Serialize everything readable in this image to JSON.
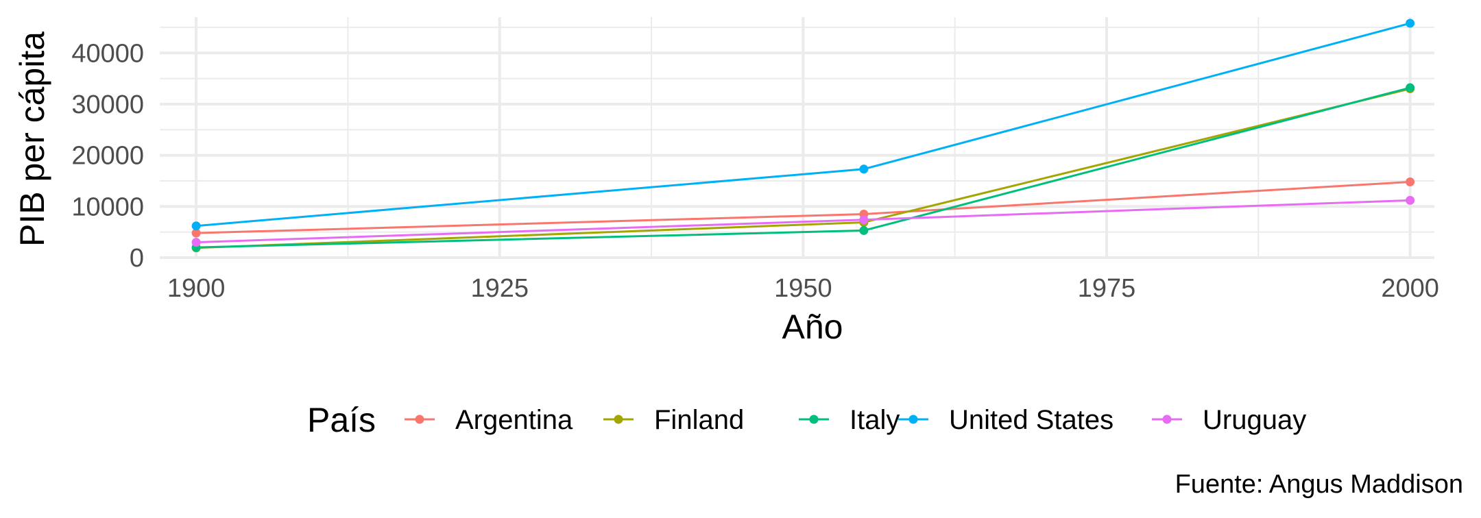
{
  "chart_data": {
    "type": "line",
    "title": "",
    "xlabel": "Año",
    "ylabel": "PIB per cápita",
    "legend_title": "País",
    "legend_position": "bottom",
    "caption": "Fuente: Angus Maddison",
    "x": [
      1900,
      1955,
      2000
    ],
    "xlim": [
      1897,
      2002
    ],
    "ylim": [
      0,
      47000
    ],
    "x_ticks": [
      1900,
      1925,
      1950,
      1975,
      2000
    ],
    "x_tick_labels": [
      "1900",
      "1925",
      "1950",
      "1975",
      "2000"
    ],
    "y_ticks": [
      0,
      10000,
      20000,
      30000,
      40000
    ],
    "y_tick_labels": [
      "0",
      "10000",
      "20000",
      "30000",
      "40000"
    ],
    "grid": true,
    "series": [
      {
        "name": "Argentina",
        "color": "#F8766D",
        "values": [
          4800,
          8500,
          14800
        ]
      },
      {
        "name": "Finland",
        "color": "#A3A500",
        "values": [
          1900,
          6900,
          33000
        ]
      },
      {
        "name": "Italy",
        "color": "#00BF7D",
        "values": [
          2000,
          5300,
          33200
        ]
      },
      {
        "name": "United States",
        "color": "#00B0F6",
        "values": [
          6200,
          17300,
          45800
        ]
      },
      {
        "name": "Uruguay",
        "color": "#E76BF3",
        "values": [
          3000,
          7400,
          11200
        ]
      }
    ]
  }
}
